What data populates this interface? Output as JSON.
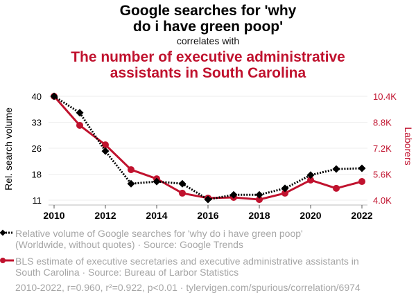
{
  "header": {
    "title_line1": "Google searches for 'why",
    "title_line2": "do i have green poop'",
    "subtitle": "correlates with",
    "title2_line1": "The number of executive administrative",
    "title2_line2": "assistants in South Carolina"
  },
  "colors": {
    "series1": "#000000",
    "series2": "#c0122e",
    "grid": "#eeeeee",
    "muted_text": "#a6a6a6"
  },
  "legend": {
    "series1_line1": "Relative volume of Google searches for 'why do i have green poop'",
    "series1_line2": "(Worldwide, without quotes) · Source: Google Trends",
    "series2_line1": "BLS estimate of executive secretaries and executive administrative assistants in",
    "series2_line2": "South Carolina · Source: Bureau of Larbor Statistics"
  },
  "footer": "2010-2022, r=0.960, r²=0.922, p<0.01 · tylervigen.com/spurious/correlation/6974",
  "chart_data": {
    "type": "line",
    "title": "Google searches for 'why do i have green poop' correlates with The number of executive administrative assistants in South Carolina",
    "x": [
      2010,
      2011,
      2012,
      2013,
      2014,
      2015,
      2016,
      2017,
      2018,
      2019,
      2020,
      2021,
      2022
    ],
    "xlabel": "",
    "x_ticks": [
      "2010",
      "2012",
      "2014",
      "2016",
      "2018",
      "2020",
      "2022"
    ],
    "xlim": [
      2010,
      2022
    ],
    "series": [
      {
        "name": "Relative volume of Google searches for 'why do i have green poop'",
        "axis": "left",
        "style": "dotted-diamond",
        "values": [
          40,
          35.4,
          24.7,
          15.6,
          16.2,
          15.6,
          11.2,
          12.5,
          12.5,
          14.3,
          18.0,
          19.7,
          19.9
        ]
      },
      {
        "name": "BLS estimate of executive secretaries and executive administrative assistants in South Carolina",
        "axis": "right",
        "style": "solid-circle",
        "values": [
          10400,
          8610,
          7410,
          5880,
          5320,
          4430,
          4130,
          4170,
          4040,
          4430,
          5240,
          4730,
          5150
        ]
      }
    ],
    "y_left": {
      "label": "Rel. search volume",
      "ticks": [
        "40",
        "33",
        "26",
        "18",
        "11"
      ],
      "tick_values": [
        40,
        32.75,
        25.5,
        18.25,
        11
      ],
      "ylim": [
        11,
        40
      ]
    },
    "y_right": {
      "label": "Laborers",
      "ticks": [
        "10.4K",
        "8.8K",
        "7.2K",
        "5.6K",
        "4.0K"
      ],
      "tick_values": [
        10400,
        8800,
        7200,
        5600,
        4000
      ],
      "ylim": [
        4000,
        10400
      ]
    },
    "grid": true,
    "legend_position": "bottom-left"
  }
}
